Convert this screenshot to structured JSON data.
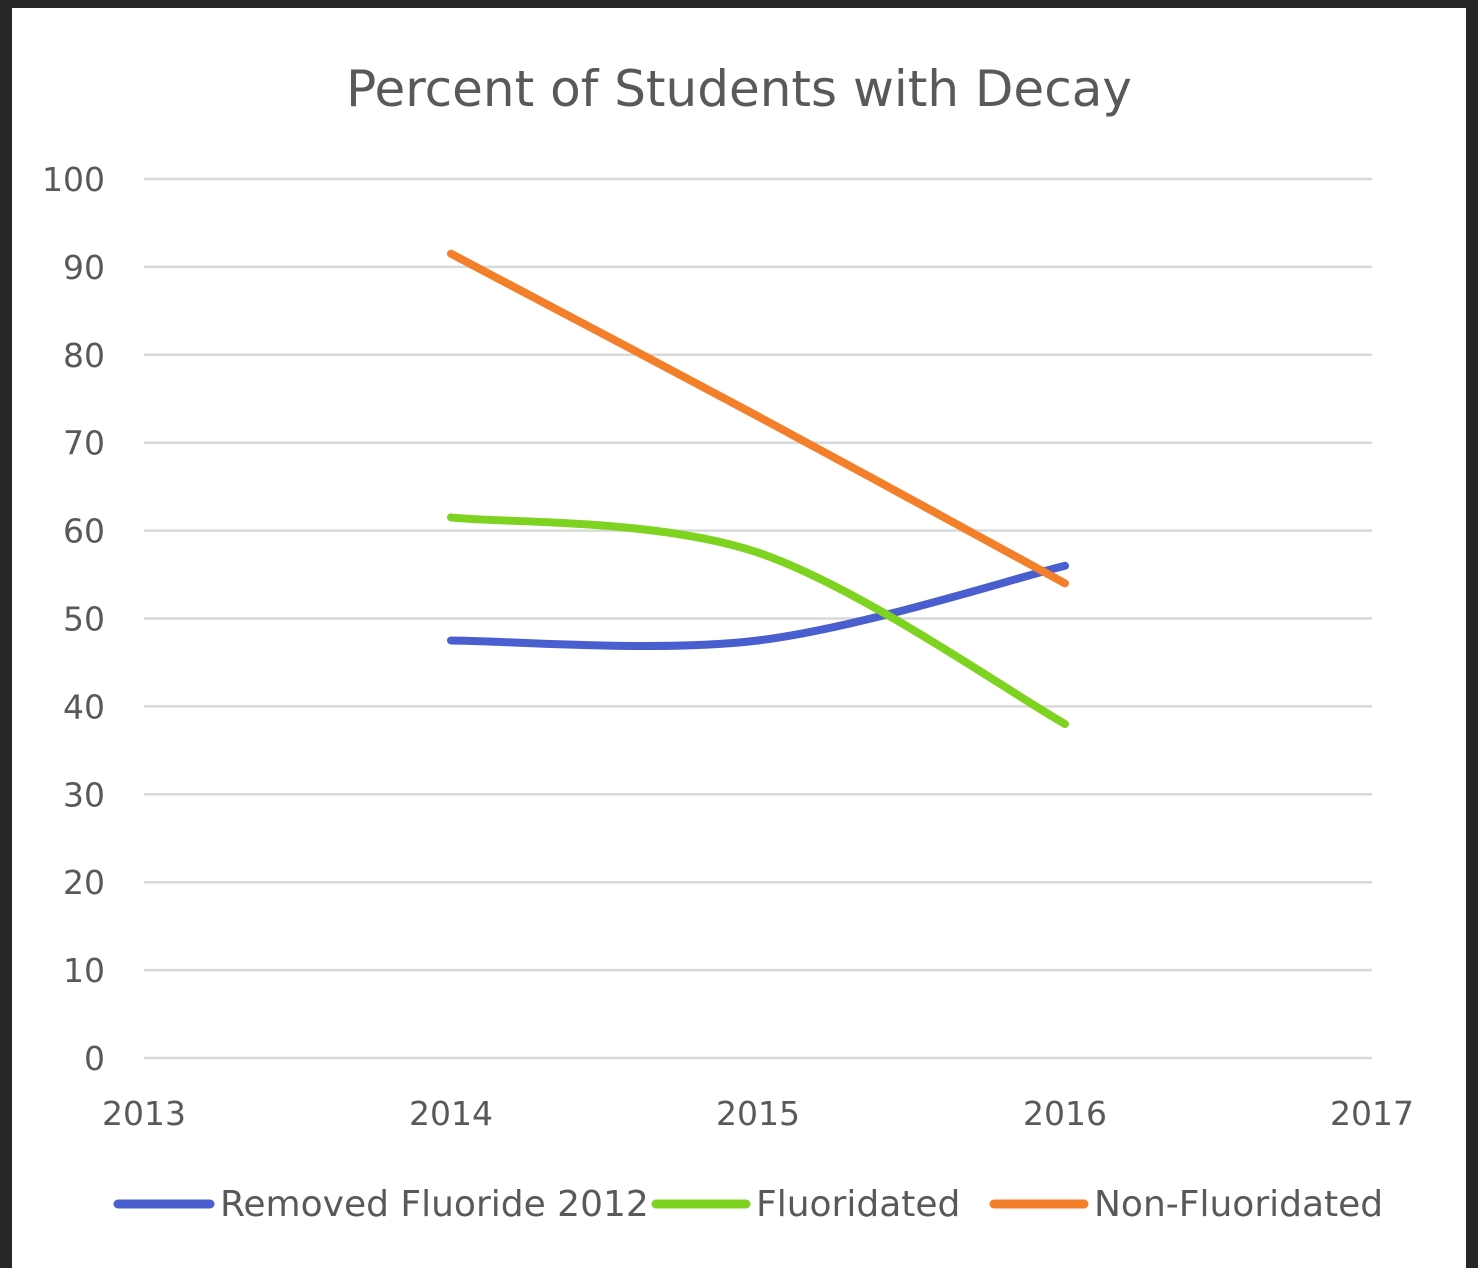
{
  "chart_data": {
    "type": "line",
    "title": "Percent of Students with Decay",
    "xlabel": "",
    "ylabel": "",
    "xlim": [
      2013,
      2017
    ],
    "ylim": [
      0,
      100
    ],
    "x_ticks": [
      2013,
      2014,
      2015,
      2016,
      2017
    ],
    "y_ticks": [
      0,
      10,
      20,
      30,
      40,
      50,
      60,
      70,
      80,
      90,
      100
    ],
    "grid": true,
    "smoothed": true,
    "legend_position": "bottom",
    "x": [
      2014,
      2015,
      2016
    ],
    "series": [
      {
        "name": "Removed Fluoride 2012",
        "color": "#4a5fcf",
        "values": [
          47.5,
          47.5,
          56
        ]
      },
      {
        "name": "Fluoridated",
        "color": "#7ed321",
        "values": [
          61.5,
          57.5,
          38
        ]
      },
      {
        "name": "Non-Fluoridated",
        "color": "#f47f2a",
        "values": [
          91.5,
          73,
          54
        ]
      }
    ]
  }
}
